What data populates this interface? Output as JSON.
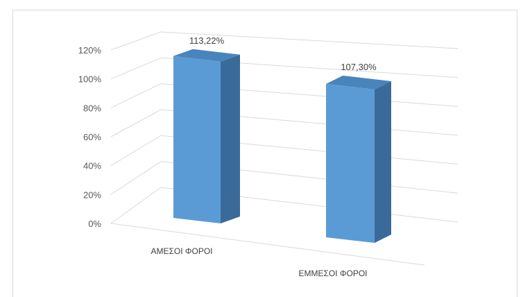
{
  "chart_data": {
    "type": "bar",
    "style": "3d-column",
    "categories": [
      "ΑΜΕΣΟΙ ΦΟΡΟΙ",
      "ΕΜΜΕΣΟΙ ΦΟΡΟΙ"
    ],
    "values": [
      113.22,
      107.3
    ],
    "data_labels": [
      "113,22%",
      "107,30%"
    ],
    "y_ticks": [
      "0%",
      "20%",
      "40%",
      "60%",
      "80%",
      "100%",
      "120%"
    ],
    "ylim": [
      0,
      120
    ],
    "grid": true,
    "legend": "none",
    "colors": {
      "bar_front": "#5b9bd5",
      "bar_side": "#3a6a99",
      "bar_top": "#4a84bd",
      "grid": "#d9d9d9"
    }
  }
}
